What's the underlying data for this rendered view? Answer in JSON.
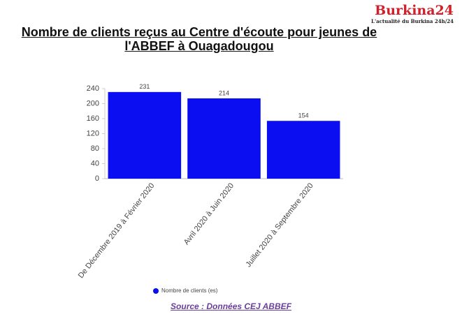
{
  "logo": {
    "name": "Burkina24",
    "tagline": "L'actualité du Burkina 24h/24"
  },
  "chart_data": {
    "type": "bar",
    "title": "Nombre de clients reçus au Centre d'écoute pour jeunes de l'ABBEF à Ouagadougou",
    "categories": [
      "De Décembre 2019 à Février 2020",
      "Avril 2020 à Juin 2020",
      "Juillet 2020 à Septembre 2020"
    ],
    "series": [
      {
        "name": "Nombre de clients (es)",
        "color": "#0a0ef0",
        "values": [
          231,
          214,
          154
        ]
      }
    ],
    "ylim": [
      0,
      240
    ],
    "yticks": [
      0,
      40,
      80,
      120,
      160,
      200,
      240
    ],
    "grid": false,
    "legend": "bottom",
    "source": "Source : Données CEJ ABBEF"
  }
}
